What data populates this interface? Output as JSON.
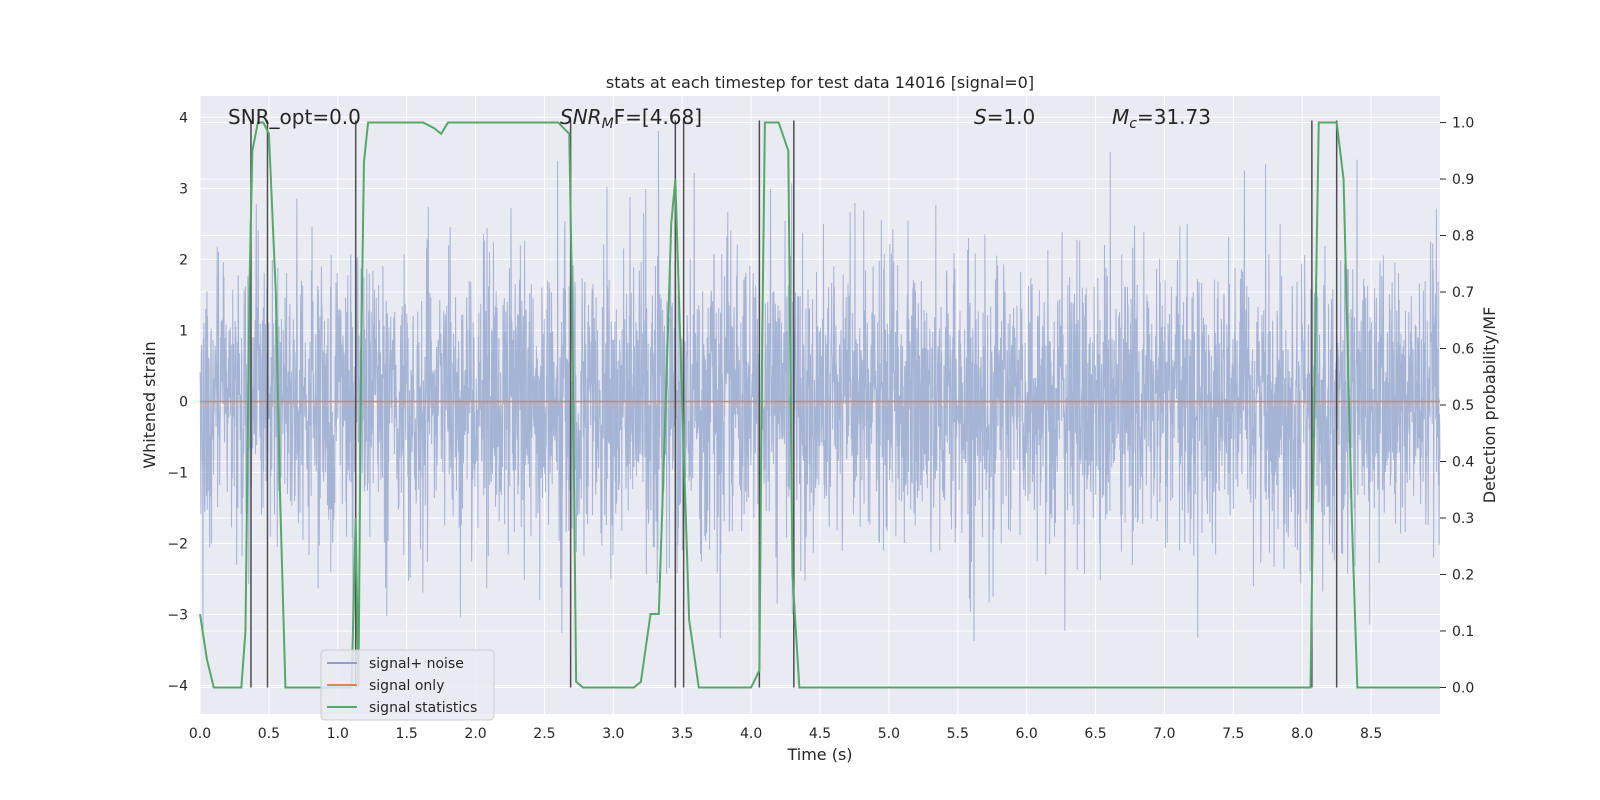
{
  "chart_data": {
    "type": "line",
    "title": "stats at each timestep for test data 14016 [signal=0]",
    "xlabel": "Time (s)",
    "ylabel": "Whitened strain",
    "y2label": "Detection probability/MF",
    "xlim": [
      0,
      9.0
    ],
    "ylim": [
      -4.4,
      4.3
    ],
    "y2lim": [
      -0.047,
      1.047
    ],
    "x_ticks": [
      "0.0",
      "0.5",
      "1.0",
      "1.5",
      "2.0",
      "2.5",
      "3.0",
      "3.5",
      "4.0",
      "4.5",
      "5.0",
      "5.5",
      "6.0",
      "6.5",
      "7.0",
      "7.5",
      "8.0",
      "8.5"
    ],
    "y_ticks": [
      "−4",
      "−3",
      "−2",
      "−1",
      "0",
      "1",
      "2",
      "3",
      "4"
    ],
    "y2_ticks": [
      "0.0",
      "0.1",
      "0.2",
      "0.3",
      "0.4",
      "0.5",
      "0.6",
      "0.7",
      "0.8",
      "0.9",
      "1.0"
    ],
    "grid": true,
    "legend_position": "lower-left",
    "annotations": {
      "snr_opt": "SNR_opt=0.0",
      "snr_mf_sym": "SNR",
      "snr_mf_sub": "M",
      "snr_mf_rest": "F=[4.68]",
      "s_sym": "S",
      "s_rest": "=1.0",
      "mc_sym": "M",
      "mc_sub": "c",
      "mc_rest": "=31.73"
    },
    "series": [
      {
        "name": "signal+ noise",
        "color": "#8da0cb",
        "description_points": 4096,
        "envelope_abs": 2.2,
        "peak_abs": 4.0
      },
      {
        "name": "signal only",
        "color": "#dd8452",
        "y": 0
      },
      {
        "name": "signal statistics",
        "color": "#55a868",
        "x": [
          0.0,
          0.05,
          0.1,
          0.2,
          0.3,
          0.33,
          0.36,
          0.38,
          0.42,
          0.46,
          0.5,
          0.55,
          0.58,
          0.62,
          0.7,
          0.8,
          0.9,
          1.0,
          1.1,
          1.13,
          1.15,
          1.17,
          1.19,
          1.22,
          1.25,
          1.3,
          1.5,
          1.62,
          1.7,
          1.75,
          1.8,
          2.0,
          2.5,
          2.6,
          2.68,
          2.7,
          2.73,
          2.78,
          2.85,
          3.0,
          3.15,
          3.2,
          3.27,
          3.33,
          3.38,
          3.42,
          3.45,
          3.5,
          3.55,
          3.62,
          3.7,
          4.0,
          4.06,
          4.08,
          4.1,
          4.12,
          4.2,
          4.27,
          4.3,
          4.35,
          4.4,
          5.0,
          6.0,
          7.0,
          8.0,
          8.06,
          8.1,
          8.12,
          8.2,
          8.25,
          8.3,
          8.33,
          8.36,
          8.4,
          8.5,
          8.6,
          8.7,
          8.8,
          8.9,
          9.0
        ],
        "y": [
          0.13,
          0.05,
          0.0,
          0.0,
          0.0,
          0.1,
          0.72,
          0.95,
          1.0,
          1.0,
          0.98,
          0.7,
          0.35,
          0.0,
          0.0,
          0.0,
          0.0,
          0.0,
          0.0,
          0.3,
          0.0,
          0.6,
          0.93,
          1.0,
          1.0,
          1.0,
          1.0,
          1.0,
          0.99,
          0.98,
          1.0,
          1.0,
          1.0,
          1.0,
          0.98,
          0.7,
          0.01,
          0.0,
          0.0,
          0.0,
          0.0,
          0.01,
          0.13,
          0.13,
          0.5,
          0.82,
          0.9,
          0.5,
          0.12,
          0.0,
          0.0,
          0.0,
          0.03,
          0.6,
          1.0,
          1.0,
          1.0,
          0.95,
          0.2,
          0.0,
          0.0,
          0.0,
          0.0,
          0.0,
          0.0,
          0.0,
          0.7,
          1.0,
          1.0,
          1.0,
          0.9,
          0.6,
          0.3,
          0.0,
          0.0,
          0.0,
          0.0,
          0.0,
          0.0,
          0.0
        ]
      }
    ],
    "vertical_markers": [
      0.37,
      0.49,
      1.13,
      2.69,
      3.45,
      3.51,
      4.06,
      4.31,
      8.07,
      8.25
    ],
    "colors": {
      "plot_bg": "#eaeaf2",
      "grid": "#ffffff",
      "marker": "#4d4d4d"
    }
  }
}
